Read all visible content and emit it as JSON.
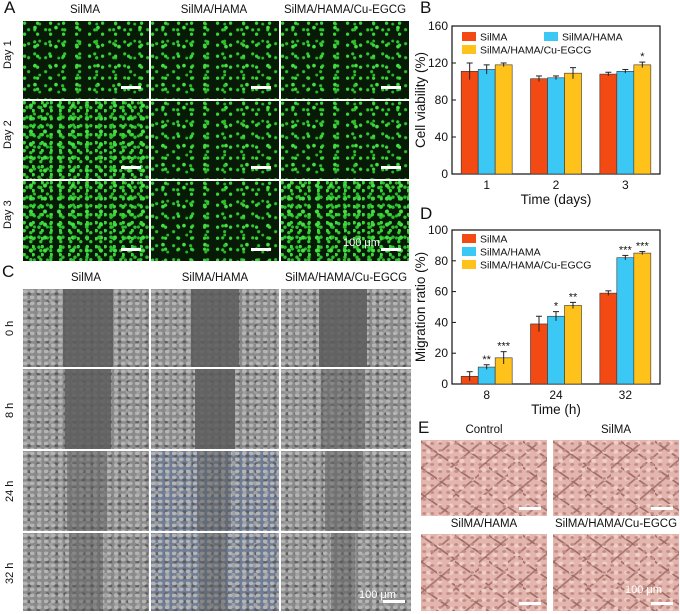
{
  "panels": {
    "A": {
      "letter": "A",
      "columns": [
        "SilMA",
        "SilMA/HAMA",
        "SilMA/HAMA/Cu-EGCG"
      ],
      "rows": [
        "Day 1",
        "Day 2",
        "Day 3"
      ],
      "scale_label": "100 μm"
    },
    "C": {
      "letter": "C",
      "columns": [
        "SilMA",
        "SilMA/HAMA",
        "SilMA/HAMA/Cu-EGCG"
      ],
      "rows": [
        "0 h",
        "8 h",
        "24 h",
        "32 h"
      ],
      "scale_label": "100 μm"
    },
    "E": {
      "letter": "E",
      "labels": [
        "Control",
        "SilMA",
        "SilMA/HAMA",
        "SilMA/HAMA/Cu-EGCG"
      ],
      "scale_label": "100 μm"
    },
    "B": {
      "letter": "B"
    },
    "D": {
      "letter": "D"
    }
  },
  "chart_data": [
    {
      "panel": "B",
      "type": "bar",
      "xlabel": "Time (days)",
      "ylabel": "Cell viability (%)",
      "categories": [
        "1",
        "2",
        "3"
      ],
      "ylim": [
        0,
        160
      ],
      "yticks": [
        0,
        40,
        80,
        120,
        160
      ],
      "legend_position": "top",
      "series": [
        {
          "name": "SilMA",
          "color": "#f24a12",
          "values": [
            111,
            103,
            108
          ],
          "errors": [
            9,
            3,
            2
          ],
          "marks": [
            "",
            "",
            ""
          ]
        },
        {
          "name": "SilMA/HAMA",
          "color": "#3cc8f5",
          "values": [
            113,
            104,
            111
          ],
          "errors": [
            5,
            2,
            2
          ],
          "marks": [
            "",
            "",
            ""
          ]
        },
        {
          "name": "SilMA/HAMA/Cu-EGCG",
          "color": "#ffc21a",
          "values": [
            118,
            109,
            118
          ],
          "errors": [
            2,
            6,
            3
          ],
          "marks": [
            "",
            "",
            "*"
          ]
        }
      ]
    },
    {
      "panel": "D",
      "type": "bar",
      "xlabel": "Time (h)",
      "ylabel": "Migration ratio (%)",
      "categories": [
        "8",
        "24",
        "32"
      ],
      "ylim": [
        0,
        100
      ],
      "yticks": [
        0,
        20,
        40,
        60,
        80,
        100
      ],
      "legend_position": "top-left",
      "series": [
        {
          "name": "SilMA",
          "color": "#f24a12",
          "values": [
            5,
            39,
            59
          ],
          "errors": [
            3,
            5,
            1.5
          ],
          "marks": [
            "",
            "",
            ""
          ]
        },
        {
          "name": "SilMA/HAMA",
          "color": "#3cc8f5",
          "values": [
            11,
            44,
            82
          ],
          "errors": [
            1.5,
            3,
            1.5
          ],
          "marks": [
            "**",
            "*",
            "***"
          ]
        },
        {
          "name": "SilMA/HAMA/Cu-EGCG",
          "color": "#ffc21a",
          "values": [
            17,
            51,
            85
          ],
          "errors": [
            4,
            2,
            1
          ],
          "marks": [
            "***",
            "**",
            "***"
          ]
        }
      ]
    }
  ]
}
